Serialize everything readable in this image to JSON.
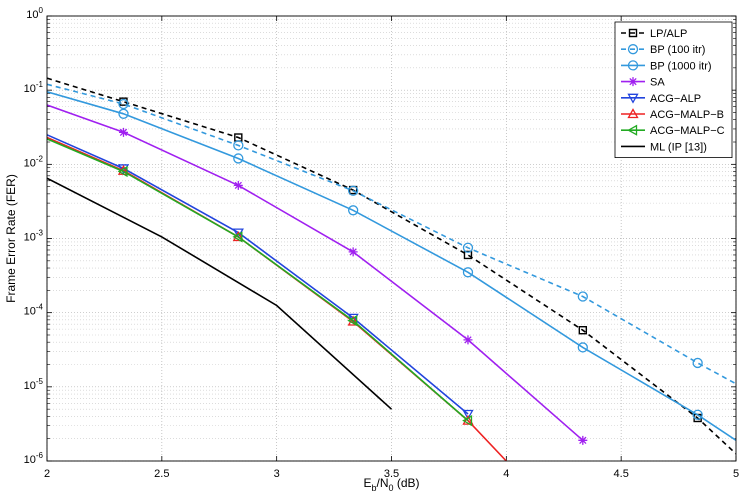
{
  "chart_data": {
    "type": "line",
    "title": "",
    "xlabel_parts": {
      "e": "E",
      "e_sub": "b",
      "slash": "/N",
      "n_sub": "0",
      "unit": " (dB)"
    },
    "ylabel": "Frame Error Rate (FER)",
    "xlim": [
      2,
      5
    ],
    "ylim": [
      1e-06,
      1
    ],
    "yscale": "log",
    "grid": true,
    "legend_position": "top-right",
    "x_ticks": [
      {
        "value": 2,
        "label": "2"
      },
      {
        "value": 2.5,
        "label": "2.5"
      },
      {
        "value": 3,
        "label": "3"
      },
      {
        "value": 3.5,
        "label": "3.5"
      },
      {
        "value": 4,
        "label": "4"
      },
      {
        "value": 4.5,
        "label": "4.5"
      },
      {
        "value": 5,
        "label": "5"
      }
    ],
    "y_ticks": [
      {
        "value": 1,
        "base": "10",
        "exp": "0"
      },
      {
        "value": 0.1,
        "base": "10",
        "exp": "-1"
      },
      {
        "value": 0.01,
        "base": "10",
        "exp": "-2"
      },
      {
        "value": 0.001,
        "base": "10",
        "exp": "-3"
      },
      {
        "value": 0.0001,
        "base": "10",
        "exp": "-4"
      },
      {
        "value": 1e-05,
        "base": "10",
        "exp": "-5"
      },
      {
        "value": 1e-06,
        "base": "10",
        "exp": "-6"
      }
    ],
    "series": [
      {
        "name": "LP/ALP",
        "color": "#000000",
        "dash": "5,4",
        "marker": "square",
        "x": [
          2,
          2.333,
          2.833,
          3.333,
          3.833,
          4.333,
          4.833,
          5
        ],
        "y": [
          0.145,
          0.07,
          0.023,
          0.0045,
          0.0006,
          5.8e-05,
          3.8e-06,
          1.25e-06
        ],
        "marker_idx": [
          1,
          2,
          3,
          4,
          5,
          6
        ]
      },
      {
        "name": "BP (100 itr)",
        "color": "#3399dd",
        "dash": "5,4",
        "marker": "circle",
        "x": [
          2,
          2.333,
          2.833,
          3.333,
          3.833,
          4.333,
          4.833,
          5
        ],
        "y": [
          0.12,
          0.065,
          0.018,
          0.0044,
          0.00075,
          0.000165,
          2.1e-05,
          1.1e-05
        ],
        "marker_idx": [
          1,
          2,
          3,
          4,
          5,
          6
        ]
      },
      {
        "name": "BP (1000 itr)",
        "color": "#3399dd",
        "dash": "",
        "marker": "circle",
        "x": [
          2,
          2.333,
          2.833,
          3.333,
          3.833,
          4.333,
          4.833,
          5
        ],
        "y": [
          0.095,
          0.048,
          0.012,
          0.0024,
          0.00035,
          3.4e-05,
          4.2e-06,
          1.9e-06
        ],
        "marker_idx": [
          1,
          2,
          3,
          4,
          5,
          6
        ]
      },
      {
        "name": "SA",
        "color": "#a020f0",
        "dash": "",
        "marker": "star",
        "x": [
          2,
          2.333,
          2.833,
          3.333,
          3.833,
          4.333
        ],
        "y": [
          0.063,
          0.027,
          0.0052,
          0.00066,
          4.3e-05,
          1.9e-06
        ],
        "marker_idx": [
          1,
          2,
          3,
          4,
          5
        ]
      },
      {
        "name": "ACG−ALP",
        "color": "#2244dd",
        "dash": "",
        "marker": "tri-down",
        "x": [
          2,
          2.333,
          2.833,
          3.333,
          3.833
        ],
        "y": [
          0.025,
          0.0088,
          0.0012,
          8.5e-05,
          4.3e-06
        ],
        "marker_idx": [
          1,
          2,
          3,
          4
        ]
      },
      {
        "name": "ACG−MALP−B",
        "color": "#ee2222",
        "dash": "",
        "marker": "tri-up",
        "x": [
          2,
          2.333,
          2.833,
          3.333,
          3.833,
          4.0
        ],
        "y": [
          0.023,
          0.0082,
          0.00105,
          7.6e-05,
          3.5e-06,
          1e-06
        ],
        "marker_idx": [
          1,
          2,
          3,
          4
        ]
      },
      {
        "name": "ACG−MALP−C",
        "color": "#22aa22",
        "dash": "",
        "marker": "tri-left",
        "x": [
          2,
          2.333,
          2.833,
          3.333,
          3.833
        ],
        "y": [
          0.022,
          0.008,
          0.00105,
          7.8e-05,
          3.5e-06
        ],
        "marker_idx": [
          1,
          2,
          3,
          4
        ]
      },
      {
        "name": "ML (IP [13])",
        "color": "#000000",
        "dash": "",
        "marker": "none",
        "x": [
          2,
          2.5,
          3,
          3.5
        ],
        "y": [
          0.0065,
          0.00105,
          0.000125,
          5e-06
        ],
        "marker_idx": []
      }
    ]
  }
}
